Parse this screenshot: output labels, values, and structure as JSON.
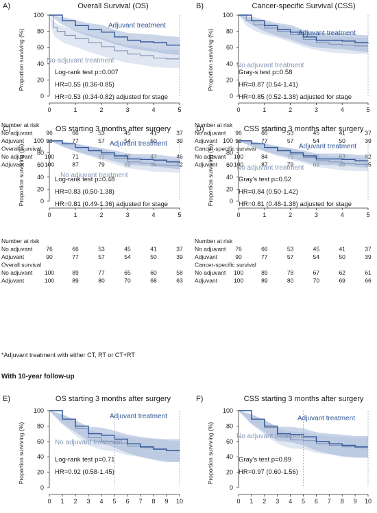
{
  "colors": {
    "adjuvant": "#2f5597",
    "adjuvant_band": "#9fb3d6",
    "no_adjuvant": "#8497b8",
    "no_adjuvant_band": "#c7d3e8",
    "text": "#1a1a1a",
    "axis": "#333333",
    "dotted": "#9aa5b5"
  },
  "ylabel": "Proportion surviving (%)",
  "footnote": "*Adjuvant treatment with either CT, RT or CT+RT",
  "section_heading": "With 10-year follow-up",
  "chart_data": [
    {
      "letter": "A)",
      "title": "Overall Survival (OS)",
      "type": "line",
      "xlim": [
        0,
        5
      ],
      "xticks": [
        "0",
        "1",
        "2",
        "3",
        "4",
        "5"
      ],
      "ylim": [
        0,
        100
      ],
      "yticks": [
        "100",
        "80",
        "60",
        "40",
        "20",
        "0"
      ],
      "dotted_x": [
        5
      ],
      "labels": {
        "adjuvant": "Adjuvant treatment",
        "no_adjuvant": "No adjuvant treatment"
      },
      "stats": [
        "Log-rank test p=0.007",
        "HR=0.55 (0.36-0.85)",
        "HR=0.53 (0.34-0.82) adjusted for stage"
      ],
      "series": [
        {
          "name": "Adjuvant treatment",
          "x": [
            0,
            0.5,
            1,
            1.5,
            2,
            2.5,
            3,
            3.5,
            4,
            4.5,
            5
          ],
          "values": [
            100,
            93,
            87,
            82,
            79,
            73,
            69,
            67,
            66,
            63,
            62
          ],
          "lower": [
            100,
            88,
            80,
            74,
            70,
            64,
            60,
            57,
            55,
            52,
            51
          ],
          "upper": [
            100,
            98,
            94,
            90,
            88,
            82,
            78,
            77,
            76,
            74,
            73
          ]
        },
        {
          "name": "No adjuvant treatment",
          "x": [
            0,
            0.15,
            0.3,
            0.6,
            1,
            1.5,
            2,
            2.5,
            3,
            3.5,
            4,
            4.5,
            5
          ],
          "values": [
            100,
            85,
            80,
            75,
            71,
            66,
            61,
            56,
            52,
            50,
            47,
            46,
            46
          ],
          "lower": [
            100,
            76,
            71,
            65,
            61,
            55,
            50,
            45,
            41,
            39,
            36,
            35,
            35
          ],
          "upper": [
            100,
            93,
            89,
            85,
            81,
            77,
            72,
            67,
            63,
            61,
            58,
            57,
            57
          ]
        }
      ],
      "table": {
        "risk_header": "Number at risk",
        "surv_header": "Overall survival",
        "row_labels": [
          "No adjuvant",
          "Adjuvant"
        ],
        "risk": [
          [
            "96",
            "66",
            "53",
            "45",
            "41",
            "37"
          ],
          [
            "93",
            "77",
            "57",
            "54",
            "50",
            "39"
          ]
        ],
        "surv": [
          [
            "100",
            "71",
            "61",
            "52",
            "47",
            "46"
          ],
          [
            "100",
            "87",
            "79",
            "69",
            "66",
            "62"
          ]
        ]
      }
    },
    {
      "letter": "B)",
      "title": "Cancer-specific Survival (CSS)",
      "type": "line",
      "xlim": [
        0,
        5
      ],
      "xticks": [
        "0",
        "1",
        "2",
        "3",
        "4",
        "5"
      ],
      "ylim": [
        0,
        100
      ],
      "yticks": [
        "100",
        "80",
        "60",
        "40",
        "20",
        "0"
      ],
      "dotted_x": [
        5
      ],
      "labels": {
        "adjuvant": "Adjuvant treatment",
        "no_adjuvant": "No adjuvant treatment"
      },
      "stats": [
        "Gray-s test p=0.58",
        "HR=0.87 (0.54-1.41)",
        "HR=0.85 (0.52-1.38) adjusted for stage"
      ],
      "series": [
        {
          "name": "Adjuvant treatment",
          "x": [
            0,
            0.5,
            1,
            1.5,
            2,
            2.5,
            3,
            3.5,
            4,
            4.5,
            5
          ],
          "values": [
            100,
            93,
            87,
            82,
            79,
            73,
            69,
            69,
            68,
            66,
            65
          ],
          "lower": [
            100,
            88,
            80,
            74,
            70,
            64,
            60,
            59,
            58,
            56,
            54
          ],
          "upper": [
            100,
            98,
            94,
            90,
            88,
            82,
            78,
            78,
            78,
            76,
            75
          ]
        },
        {
          "name": "No adjuvant treatment",
          "x": [
            0,
            0.3,
            0.6,
            1,
            1.5,
            2,
            2.5,
            3,
            3.5,
            4,
            4.5,
            5
          ],
          "values": [
            100,
            93,
            88,
            84,
            80,
            76,
            70,
            66,
            64,
            63,
            62,
            62
          ],
          "lower": [
            100,
            87,
            81,
            76,
            72,
            67,
            61,
            57,
            54,
            53,
            52,
            52
          ],
          "upper": [
            100,
            98,
            94,
            91,
            88,
            85,
            79,
            76,
            74,
            73,
            72,
            72
          ]
        }
      ],
      "table": {
        "risk_header": "Number at risk",
        "surv_header": "Cancer-specific survival",
        "row_labels": [
          "No adjuvant",
          "Adjuvant"
        ],
        "risk": [
          [
            "96",
            "66",
            "53",
            "45",
            "41",
            "37"
          ],
          [
            "93",
            "77",
            "57",
            "54",
            "50",
            "39"
          ]
        ],
        "surv": [
          [
            "100",
            "84",
            "76",
            "66",
            "63",
            "62"
          ],
          [
            "100",
            "87",
            "79",
            "69",
            "68",
            "65"
          ]
        ]
      }
    },
    {
      "letter": "C)",
      "title": "OS starting 3 months after surgery",
      "type": "line",
      "xlim": [
        0,
        5
      ],
      "xticks": [
        "0",
        "1",
        "2",
        "3",
        "4",
        "5"
      ],
      "ylim": [
        0,
        100
      ],
      "yticks": [
        "100",
        "80",
        "60",
        "40",
        "20",
        "0"
      ],
      "dotted_x": [
        5
      ],
      "labels": {
        "adjuvant": "Adjuvant treatment",
        "no_adjuvant": "No adjuvant treatment"
      },
      "stats": [
        "Log-rank test p=0.48",
        "HR=0.83 (0.50-1.38)",
        "HR=0.81 (0.49-1.36) adjusted for stage"
      ],
      "series": [
        {
          "name": "Adjuvant treatment",
          "x": [
            0,
            0.5,
            1,
            1.5,
            2,
            2.5,
            3,
            3.5,
            4,
            4.5,
            5
          ],
          "values": [
            100,
            95,
            89,
            84,
            80,
            75,
            70,
            69,
            68,
            65,
            63
          ],
          "lower": [
            100,
            91,
            83,
            77,
            72,
            66,
            61,
            59,
            58,
            55,
            53
          ],
          "upper": [
            100,
            99,
            95,
            91,
            88,
            84,
            79,
            78,
            78,
            75,
            73
          ]
        },
        {
          "name": "No adjuvant treatment",
          "x": [
            0,
            0.5,
            1,
            1.5,
            2,
            2.5,
            3,
            3.5,
            4,
            4.5,
            5
          ],
          "values": [
            100,
            95,
            89,
            83,
            77,
            71,
            65,
            63,
            60,
            59,
            58
          ],
          "lower": [
            100,
            90,
            82,
            75,
            68,
            62,
            55,
            52,
            49,
            48,
            47
          ],
          "upper": [
            100,
            99,
            96,
            91,
            86,
            80,
            75,
            73,
            71,
            70,
            69
          ]
        }
      ],
      "table": {
        "risk_header": "Number at risk",
        "surv_header": "Overall survival",
        "row_labels": [
          "No adjuvant",
          "Adjuvant"
        ],
        "risk": [
          [
            "76",
            "66",
            "53",
            "45",
            "41",
            "37"
          ],
          [
            "90",
            "77",
            "57",
            "54",
            "50",
            "39"
          ]
        ],
        "surv": [
          [
            "100",
            "89",
            "77",
            "65",
            "60",
            "58"
          ],
          [
            "100",
            "89",
            "80",
            "70",
            "68",
            "63"
          ]
        ]
      }
    },
    {
      "letter": "D)",
      "title": "CSS starting 3 months after surgery",
      "type": "line",
      "xlim": [
        0,
        5
      ],
      "xticks": [
        "0",
        "1",
        "2",
        "3",
        "4",
        "5"
      ],
      "ylim": [
        0,
        100
      ],
      "yticks": [
        "100",
        "80",
        "60",
        "40",
        "20",
        "0"
      ],
      "dotted_x": [
        5
      ],
      "labels": {
        "adjuvant": "Adjuvant treatment",
        "no_adjuvant": "No adjuvant treatment"
      },
      "stats": [
        "Gray's test p=0.52",
        "HR=0.84 (0.50-1.42)",
        "HR=0.81 (0.48-1.38) adjusted for stage"
      ],
      "series": [
        {
          "name": "Adjuvant treatment",
          "x": [
            0,
            0.5,
            1,
            1.5,
            2,
            2.5,
            3,
            3.5,
            4,
            4.5,
            5
          ],
          "values": [
            100,
            95,
            89,
            84,
            80,
            75,
            70,
            70,
            69,
            67,
            66
          ],
          "lower": [
            100,
            91,
            83,
            77,
            72,
            66,
            61,
            60,
            59,
            57,
            55
          ],
          "upper": [
            100,
            99,
            95,
            91,
            88,
            84,
            79,
            79,
            79,
            77,
            76
          ]
        },
        {
          "name": "No adjuvant treatment",
          "x": [
            0,
            0.5,
            1,
            1.5,
            2,
            2.5,
            3,
            3.5,
            4,
            4.5,
            5
          ],
          "values": [
            100,
            95,
            89,
            83,
            78,
            72,
            67,
            65,
            62,
            61,
            61
          ],
          "lower": [
            100,
            90,
            82,
            75,
            69,
            63,
            57,
            54,
            51,
            50,
            50
          ],
          "upper": [
            100,
            99,
            96,
            91,
            87,
            81,
            77,
            75,
            73,
            72,
            72
          ]
        }
      ],
      "table": {
        "risk_header": "Number at risk",
        "surv_header": "Cancer-specific survival",
        "row_labels": [
          "No adjuvant",
          "Adjuvant"
        ],
        "risk": [
          [
            "76",
            "66",
            "53",
            "45",
            "41",
            "37"
          ],
          [
            "90",
            "77",
            "57",
            "54",
            "50",
            "39"
          ]
        ],
        "surv": [
          [
            "100",
            "89",
            "78",
            "67",
            "62",
            "61"
          ],
          [
            "100",
            "89",
            "80",
            "70",
            "69",
            "66"
          ]
        ]
      }
    },
    {
      "letter": "E)",
      "title": "OS starting 3 months after surgery",
      "type": "line",
      "xlim": [
        0,
        10
      ],
      "xticks": [
        "0",
        "1",
        "2",
        "3",
        "4",
        "5",
        "6",
        "7",
        "8",
        "9",
        "10"
      ],
      "ylim": [
        0,
        100
      ],
      "yticks": [
        "100",
        "80",
        "60",
        "40",
        "20",
        "0"
      ],
      "dotted_x": [
        5,
        10
      ],
      "labels": {
        "adjuvant": "Adjuvant treatment",
        "no_adjuvant": "No adjuvant treatment"
      },
      "stats": [
        "Log-rank test p=0.71",
        "HR=0.92 (0.58-1.45)"
      ],
      "series": [
        {
          "name": "Adjuvant treatment",
          "x": [
            0,
            1,
            2,
            3,
            4,
            5,
            6,
            7,
            8,
            9,
            10
          ],
          "values": [
            100,
            89,
            80,
            70,
            68,
            63,
            57,
            53,
            50,
            48,
            48
          ],
          "lower": [
            100,
            83,
            72,
            61,
            58,
            52,
            45,
            40,
            36,
            33,
            33
          ],
          "upper": [
            100,
            95,
            88,
            79,
            78,
            74,
            69,
            66,
            64,
            63,
            63
          ]
        },
        {
          "name": "No adjuvant treatment",
          "x": [
            0,
            1,
            2,
            3,
            4,
            5,
            6,
            7,
            8,
            9,
            10
          ],
          "values": [
            100,
            89,
            77,
            65,
            60,
            58,
            54,
            52,
            50,
            48,
            47
          ],
          "lower": [
            100,
            82,
            68,
            55,
            49,
            47,
            42,
            40,
            37,
            35,
            34
          ],
          "upper": [
            100,
            96,
            86,
            75,
            71,
            69,
            66,
            64,
            63,
            61,
            60
          ]
        }
      ]
    },
    {
      "letter": "F)",
      "title": "CSS starting 3 months after surgery",
      "type": "line",
      "xlim": [
        0,
        10
      ],
      "xticks": [
        "0",
        "1",
        "2",
        "3",
        "4",
        "5",
        "6",
        "7",
        "8",
        "9",
        "10"
      ],
      "ylim": [
        0,
        100
      ],
      "yticks": [
        "100",
        "80",
        "60",
        "40",
        "20",
        "0"
      ],
      "dotted_x": [
        5,
        10
      ],
      "labels": {
        "adjuvant": "Adjuvant treatment",
        "no_adjuvant": "No adjuvant treatment"
      },
      "stats": [
        "Gray's test p=0.89",
        "HR=0.97 (0.60-1.56)"
      ],
      "series": [
        {
          "name": "Adjuvant treatment",
          "x": [
            0,
            1,
            2,
            3,
            4,
            5,
            6,
            7,
            8,
            9,
            10
          ],
          "values": [
            100,
            89,
            80,
            70,
            69,
            66,
            60,
            57,
            55,
            53,
            53
          ],
          "lower": [
            100,
            83,
            72,
            61,
            59,
            55,
            48,
            44,
            41,
            39,
            39
          ],
          "upper": [
            100,
            95,
            88,
            79,
            79,
            77,
            72,
            70,
            69,
            67,
            67
          ]
        },
        {
          "name": "No adjuvant treatment",
          "x": [
            0,
            1,
            2,
            3,
            4,
            5,
            6,
            7,
            8,
            9,
            10
          ],
          "values": [
            100,
            89,
            78,
            67,
            62,
            61,
            57,
            55,
            53,
            52,
            52
          ],
          "lower": [
            100,
            82,
            69,
            57,
            51,
            50,
            45,
            43,
            40,
            39,
            39
          ],
          "upper": [
            100,
            96,
            87,
            77,
            73,
            72,
            69,
            67,
            66,
            65,
            65
          ]
        }
      ]
    }
  ]
}
